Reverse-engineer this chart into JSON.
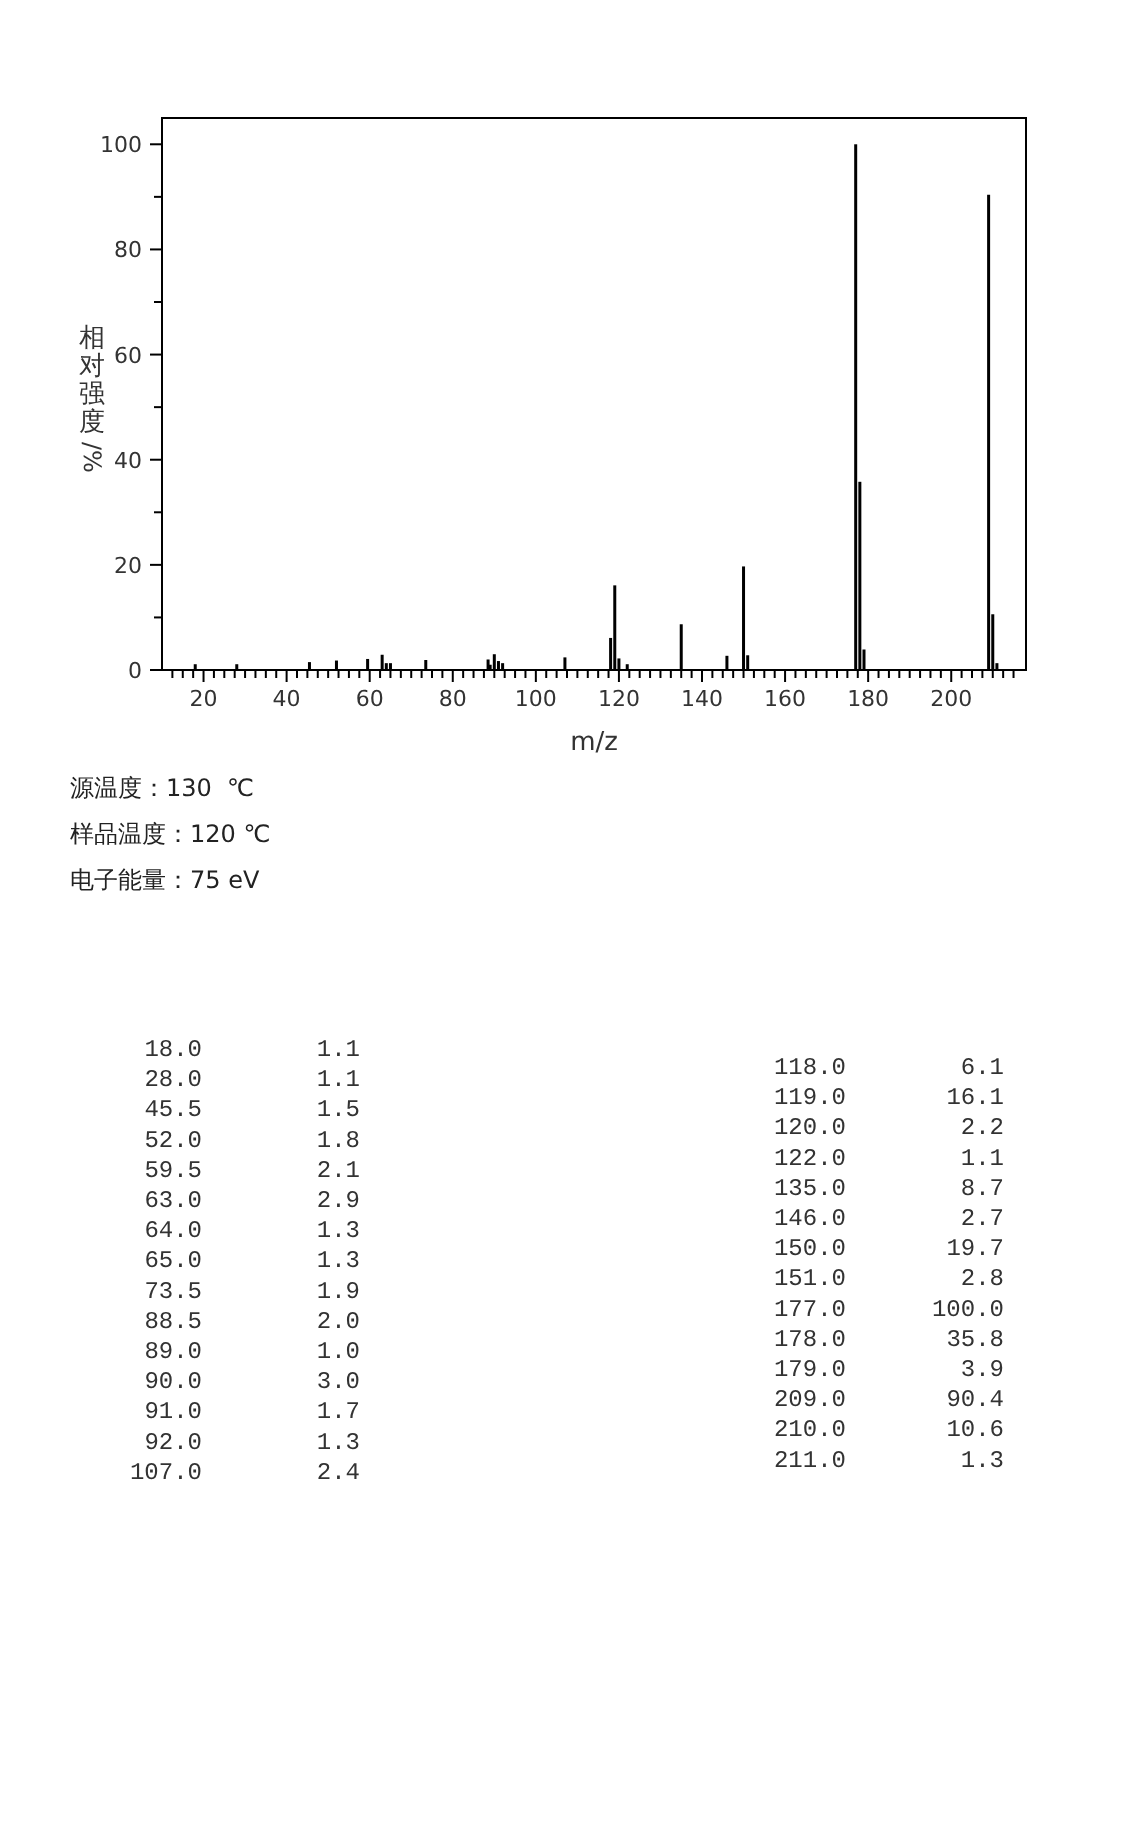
{
  "chart_data": [
    {
      "type": "bar",
      "xlabel": "m/z",
      "ylabel": "相对强度/%",
      "x": [
        18.0,
        28.0,
        45.5,
        52.0,
        59.5,
        63.0,
        64.0,
        65.0,
        73.5,
        88.5,
        89.0,
        90.0,
        91.0,
        92.0,
        107.0,
        118.0,
        119.0,
        120.0,
        122.0,
        135.0,
        146.0,
        150.0,
        151.0,
        177.0,
        178.0,
        179.0,
        209.0,
        210.0,
        211.0
      ],
      "values": [
        1.1,
        1.1,
        1.5,
        1.8,
        2.1,
        2.9,
        1.3,
        1.3,
        1.9,
        2.0,
        1.0,
        3.0,
        1.7,
        1.3,
        2.4,
        6.1,
        16.1,
        2.2,
        1.1,
        8.7,
        2.7,
        19.7,
        2.8,
        100.0,
        35.8,
        3.9,
        90.4,
        10.6,
        1.3
      ],
      "color": "#000000",
      "xlim": [
        10,
        218
      ],
      "ylim": [
        0,
        105
      ],
      "xticks": [
        {
          "value": 12.5,
          "label": null
        },
        {
          "value": 15,
          "label": null
        },
        {
          "value": 17.5,
          "label": null
        },
        20,
        {
          "value": 22.5,
          "label": null
        },
        {
          "value": 25,
          "label": null
        },
        {
          "value": 27.5,
          "label": null
        },
        {
          "value": 30,
          "label": null
        },
        {
          "value": 32.5,
          "label": null
        },
        {
          "value": 35,
          "label": null
        },
        {
          "value": 37.5,
          "label": null
        },
        40,
        {
          "value": 42.5,
          "label": null
        },
        {
          "value": 45,
          "label": null
        },
        {
          "value": 47.5,
          "label": null
        },
        {
          "value": 50,
          "label": null
        },
        {
          "value": 52.5,
          "label": null
        },
        {
          "value": 55,
          "label": null
        },
        {
          "value": 57.5,
          "label": null
        },
        60,
        {
          "value": 62.5,
          "label": null
        },
        {
          "value": 65,
          "label": null
        },
        {
          "value": 67.5,
          "label": null
        },
        {
          "value": 70,
          "label": null
        },
        {
          "value": 72.5,
          "label": null
        },
        {
          "value": 75,
          "label": null
        },
        {
          "value": 77.5,
          "label": null
        },
        80,
        {
          "value": 82.5,
          "label": null
        },
        {
          "value": 85,
          "label": null
        },
        {
          "value": 87.5,
          "label": null
        },
        {
          "value": 90,
          "label": null
        },
        {
          "value": 92.5,
          "label": null
        },
        {
          "value": 95,
          "label": null
        },
        {
          "value": 97.5,
          "label": null
        },
        100,
        {
          "value": 102.5,
          "label": null
        },
        {
          "value": 105,
          "label": null
        },
        {
          "value": 107.5,
          "label": null
        },
        {
          "value": 110,
          "label": null
        },
        {
          "value": 112.5,
          "label": null
        },
        {
          "value": 115,
          "label": null
        },
        {
          "value": 117.5,
          "label": null
        },
        120,
        {
          "value": 122.5,
          "label": null
        },
        {
          "value": 125,
          "label": null
        },
        {
          "value": 127.5,
          "label": null
        },
        {
          "value": 130,
          "label": null
        },
        {
          "value": 132.5,
          "label": null
        },
        {
          "value": 135,
          "label": null
        },
        {
          "value": 137.5,
          "label": null
        },
        140,
        {
          "value": 142.5,
          "label": null
        },
        {
          "value": 145,
          "label": null
        },
        {
          "value": 147.5,
          "label": null
        },
        {
          "value": 150,
          "label": null
        },
        {
          "value": 152.5,
          "label": null
        },
        {
          "value": 155,
          "label": null
        },
        {
          "value": 157.5,
          "label": null
        },
        160,
        {
          "value": 162.5,
          "label": null
        },
        {
          "value": 165,
          "label": null
        },
        {
          "value": 167.5,
          "label": null
        },
        {
          "value": 170,
          "label": null
        },
        {
          "value": 172.5,
          "label": null
        },
        {
          "value": 175,
          "label": null
        },
        {
          "value": 177.5,
          "label": null
        },
        180,
        {
          "value": 182.5,
          "label": null
        },
        {
          "value": 185,
          "label": null
        },
        {
          "value": 187.5,
          "label": null
        },
        {
          "value": 190,
          "label": null
        },
        {
          "value": 192.5,
          "label": null
        },
        {
          "value": 195,
          "label": null
        },
        {
          "value": 197.5,
          "label": null
        },
        200,
        {
          "value": 202.5,
          "label": null
        },
        {
          "value": 205,
          "label": null
        },
        {
          "value": 207.5,
          "label": null
        },
        {
          "value": 210,
          "label": null
        },
        {
          "value": 212.5,
          "label": null
        },
        {
          "value": 215,
          "label": null
        }
      ],
      "yticks": [
        0,
        {
          "value": 10,
          "label": null
        },
        20,
        {
          "value": 30,
          "label": null
        },
        40,
        {
          "value": 50,
          "label": null
        },
        60,
        {
          "value": 70,
          "label": null
        },
        80,
        {
          "value": 90,
          "label": null
        },
        100
      ],
      "annotations": [
        "源温度：130  ℃",
        "样品温度：120 ℃",
        "电子能量：75 eV"
      ]
    },
    {
      "type": "other",
      "categories": [
        "18.0",
        "28.0",
        "45.5",
        "52.0",
        "59.5",
        "63.0",
        "64.0",
        "65.0",
        "73.5",
        "88.5",
        "89.0",
        "90.0",
        "91.0",
        "92.0",
        "107.0",
        "118.0",
        "119.0",
        "120.0",
        "122.0",
        "135.0",
        "146.0",
        "150.0",
        "151.0",
        "177.0",
        "178.0",
        "179.0",
        "209.0",
        "210.0",
        "211.0"
      ],
      "values": [
        1.1,
        1.1,
        1.5,
        1.8,
        2.1,
        2.9,
        1.3,
        1.3,
        1.9,
        2.0,
        1.0,
        3.0,
        1.7,
        1.3,
        2.4,
        6.1,
        16.1,
        2.2,
        1.1,
        8.7,
        2.7,
        19.7,
        2.8,
        100.0,
        35.8,
        3.9,
        90.4,
        10.6,
        1.3
      ],
      "value_labels": [
        "1.1",
        "1.1",
        "1.5",
        "1.8",
        "2.1",
        "2.9",
        "1.3",
        "1.3",
        "1.9",
        "2.0",
        "1.0",
        "3.0",
        "1.7",
        "1.3",
        "2.4",
        "6.1",
        "16.1",
        "2.2",
        "1.1",
        "8.7",
        "2.7",
        "19.7",
        "2.8",
        "100.0",
        "35.8",
        "3.9",
        "90.4",
        "10.6",
        "1.3"
      ]
    }
  ]
}
